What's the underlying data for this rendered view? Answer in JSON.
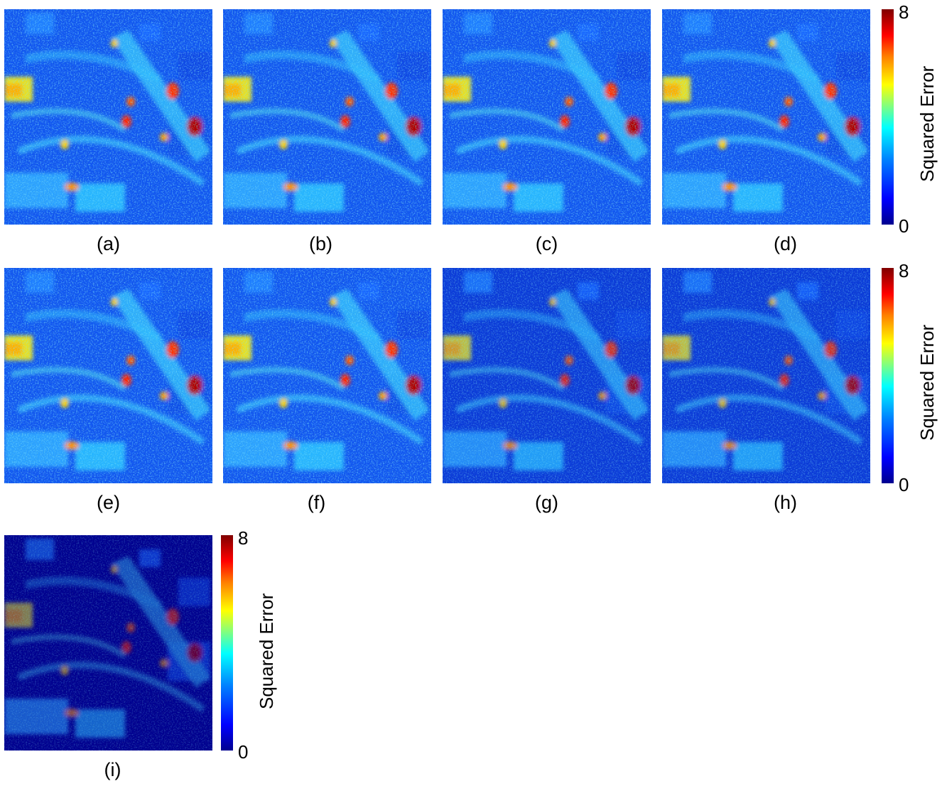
{
  "panels": [
    {
      "id": "a",
      "caption": "(a)",
      "variant": "bright"
    },
    {
      "id": "b",
      "caption": "(b)",
      "variant": "bright"
    },
    {
      "id": "c",
      "caption": "(c)",
      "variant": "bright"
    },
    {
      "id": "d",
      "caption": "(d)",
      "variant": "bright"
    },
    {
      "id": "e",
      "caption": "(e)",
      "variant": "bright"
    },
    {
      "id": "f",
      "caption": "(f)",
      "variant": "bright"
    },
    {
      "id": "g",
      "caption": "(g)",
      "variant": "medium"
    },
    {
      "id": "h",
      "caption": "(h)",
      "variant": "medium"
    },
    {
      "id": "i",
      "caption": "(i)",
      "variant": "dark"
    }
  ],
  "colorbar": {
    "label": "Squared Error",
    "max_label": "8",
    "min_label": "0",
    "min_value": 0,
    "max_value": 8,
    "colormap": "jet"
  },
  "colors": {
    "jet_low": "#00008f",
    "jet_mid": "#00ffff",
    "jet_high": "#800000"
  }
}
